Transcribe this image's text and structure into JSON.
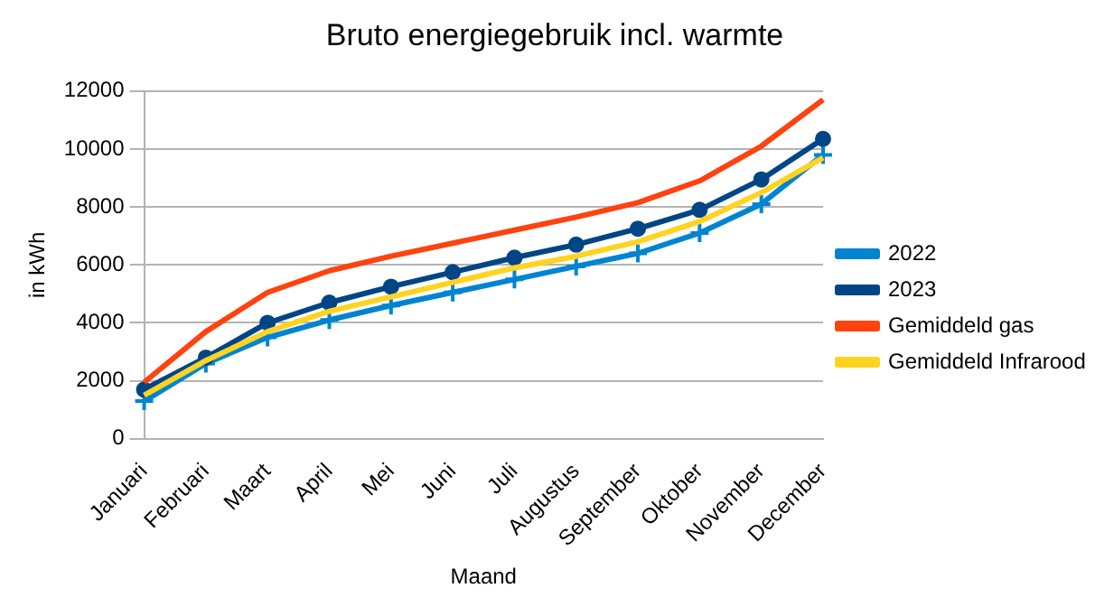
{
  "chart_data": {
    "type": "line",
    "title": "Bruto energiegebruik incl. warmte",
    "xlabel": "Maand",
    "ylabel": "in kWh",
    "categories": [
      "Januari",
      "Februari",
      "Maart",
      "April",
      "Mei",
      "Juni",
      "Juli",
      "Augustus",
      "September",
      "Oktober",
      "November",
      "December"
    ],
    "ylim": [
      0,
      12000
    ],
    "yticks": [
      0,
      2000,
      4000,
      6000,
      8000,
      10000,
      12000
    ],
    "grid": "y",
    "legend": "right",
    "series": [
      {
        "name": "2022",
        "color": "#0084d1",
        "marker": "cross",
        "values": [
          1300,
          2600,
          3500,
          4100,
          4600,
          5050,
          5500,
          5950,
          6400,
          7100,
          8100,
          9800
        ]
      },
      {
        "name": "2023",
        "color": "#004586",
        "marker": "circle",
        "values": [
          1700,
          2800,
          4000,
          4700,
          5250,
          5750,
          6250,
          6700,
          7250,
          7900,
          8950,
          10350
        ]
      },
      {
        "name": "Gemiddeld gas",
        "color": "#ff420e",
        "marker": "none",
        "values": [
          1950,
          3700,
          5050,
          5800,
          6300,
          6750,
          7200,
          7650,
          8150,
          8900,
          10100,
          11700
        ]
      },
      {
        "name": "Gemiddeld Infrarood",
        "color": "#ffd320",
        "marker": "none",
        "values": [
          1500,
          2700,
          3700,
          4400,
          4900,
          5400,
          5900,
          6300,
          6800,
          7500,
          8500,
          9700
        ]
      }
    ]
  }
}
